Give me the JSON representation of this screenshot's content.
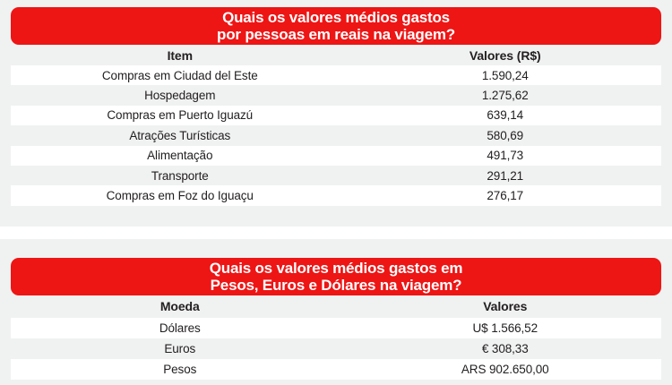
{
  "colors": {
    "banner_red": "#ee1515",
    "banner_text": "#ffffff",
    "page_bg": "#f0f1f1",
    "row_stripe": "#ffffff",
    "text": "#232020"
  },
  "chart_data": [
    {
      "type": "table",
      "title": "Quais os valores médios gastos por pessoas em reais na viagem?",
      "title_lines": [
        "Quais os valores médios gastos",
        "por pessoas em reais na viagem?"
      ],
      "columns": [
        "Item",
        "Valores (R$)"
      ],
      "rows": [
        [
          "Compras em Ciudad del Este",
          "1.590,24"
        ],
        [
          "Hospedagem",
          "1.275,62"
        ],
        [
          "Compras em Puerto Iguazú",
          "639,14"
        ],
        [
          "Atrações Turísticas",
          "580,69"
        ],
        [
          "Alimentação",
          "491,73"
        ],
        [
          "Transporte",
          "291,21"
        ],
        [
          "Compras em Foz do Iguaçu",
          "276,17"
        ]
      ]
    },
    {
      "type": "table",
      "title": "Quais os valores médios gastos em Pesos, Euros e Dólares na viagem?",
      "title_lines": [
        "Quais os valores médios gastos em",
        "Pesos, Euros e Dólares na viagem?"
      ],
      "columns": [
        "Moeda",
        "Valores"
      ],
      "rows": [
        [
          "Dólares",
          "U$ 1.566,52"
        ],
        [
          "Euros",
          "€ 308,33"
        ],
        [
          "Pesos",
          "ARS 902.650,00"
        ]
      ]
    }
  ]
}
